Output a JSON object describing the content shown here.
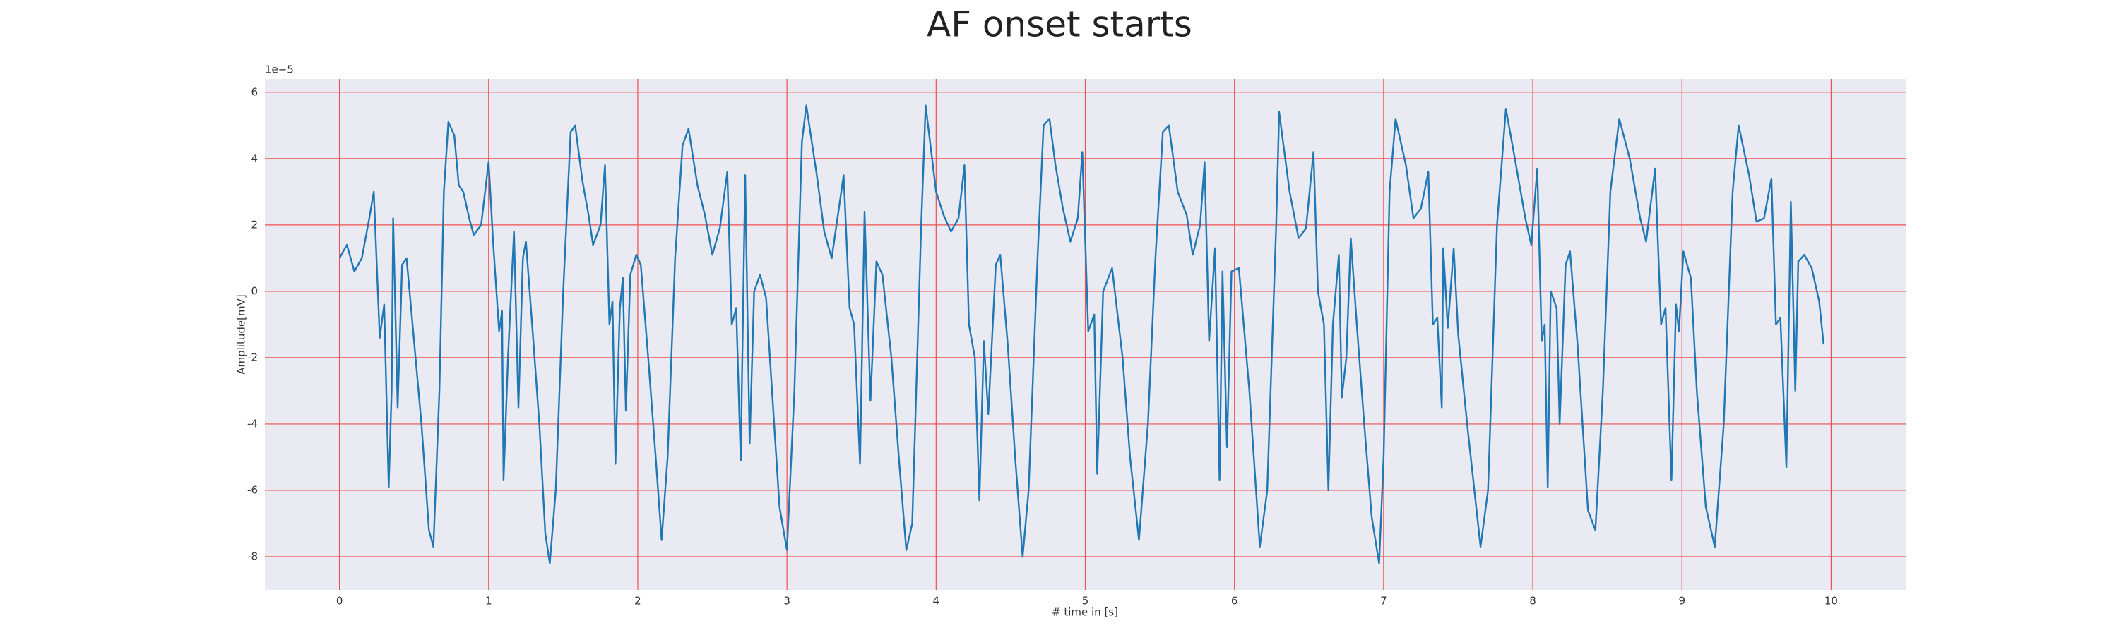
{
  "chart_data": {
    "type": "line",
    "title": "AF onset starts",
    "x_label": "# time in [s]",
    "y_label": "Amplitude[mV]",
    "y_offset_label": "1e−5",
    "x": [
      0,
      0.05,
      0.1,
      0.15,
      0.2,
      0.23,
      0.27,
      0.3,
      0.33,
      0.35,
      0.36,
      0.39,
      0.42,
      0.45,
      0.5,
      0.55,
      0.6,
      0.63,
      0.67,
      0.7,
      0.73,
      0.77,
      0.8,
      0.83,
      0.87,
      0.9,
      0.95,
      1.0,
      1.03,
      1.07,
      1.09,
      1.1,
      1.13,
      1.17,
      1.2,
      1.23,
      1.25,
      1.3,
      1.34,
      1.38,
      1.41,
      1.45,
      1.5,
      1.55,
      1.58,
      1.63,
      1.67,
      1.7,
      1.75,
      1.78,
      1.81,
      1.83,
      1.85,
      1.88,
      1.9,
      1.92,
      1.95,
      1.99,
      2.02,
      2.07,
      2.12,
      2.16,
      2.2,
      2.25,
      2.3,
      2.34,
      2.4,
      2.45,
      2.5,
      2.55,
      2.6,
      2.63,
      2.66,
      2.69,
      2.72,
      2.75,
      2.78,
      2.82,
      2.86,
      2.9,
      2.95,
      3.0,
      3.05,
      3.1,
      3.13,
      3.2,
      3.25,
      3.3,
      3.38,
      3.42,
      3.45,
      3.49,
      3.52,
      3.56,
      3.6,
      3.64,
      3.7,
      3.75,
      3.8,
      3.84,
      3.9,
      3.93,
      4.0,
      4.05,
      4.1,
      4.15,
      4.19,
      4.22,
      4.26,
      4.29,
      4.32,
      4.35,
      4.4,
      4.43,
      4.48,
      4.53,
      4.58,
      4.62,
      4.68,
      4.72,
      4.76,
      4.8,
      4.85,
      4.9,
      4.95,
      4.98,
      5.02,
      5.06,
      5.08,
      5.12,
      5.18,
      5.25,
      5.3,
      5.36,
      5.42,
      5.47,
      5.52,
      5.56,
      5.62,
      5.68,
      5.72,
      5.77,
      5.8,
      5.83,
      5.87,
      5.9,
      5.92,
      5.95,
      5.98,
      6.03,
      6.1,
      6.17,
      6.22,
      6.28,
      6.3,
      6.37,
      6.43,
      6.48,
      6.53,
      6.56,
      6.6,
      6.63,
      6.66,
      6.7,
      6.72,
      6.75,
      6.78,
      6.82,
      6.87,
      6.92,
      6.97,
      7.0,
      7.04,
      7.08,
      7.15,
      7.2,
      7.25,
      7.3,
      7.33,
      7.36,
      7.39,
      7.4,
      7.43,
      7.47,
      7.5,
      7.56,
      7.65,
      7.7,
      7.76,
      7.82,
      7.88,
      7.95,
      7.99,
      8.03,
      8.06,
      8.08,
      8.1,
      8.12,
      8.16,
      8.18,
      8.22,
      8.25,
      8.3,
      8.37,
      8.42,
      8.47,
      8.52,
      8.58,
      8.65,
      8.72,
      8.76,
      8.82,
      8.86,
      8.89,
      8.93,
      8.96,
      8.98,
      9.01,
      9.06,
      9.1,
      9.16,
      9.22,
      9.28,
      9.34,
      9.38,
      9.45,
      9.5,
      9.55,
      9.6,
      9.63,
      9.66,
      9.7,
      9.73,
      9.76,
      9.78,
      9.82,
      9.87,
      9.92,
      9.95
    ],
    "values": [
      1.0,
      1.4,
      0.6,
      1.0,
      2.2,
      3.0,
      -1.4,
      -0.4,
      -5.9,
      -3,
      2.2,
      -3.5,
      0.8,
      1.0,
      -1.5,
      -4,
      -7.2,
      -7.7,
      -3,
      3,
      5.1,
      4.7,
      3.2,
      3,
      2.2,
      1.7,
      2,
      3.9,
      1.5,
      -1.2,
      -0.6,
      -5.7,
      -2,
      1.8,
      -3.5,
      1,
      1.5,
      -1.5,
      -4,
      -7.3,
      -8.2,
      -6,
      0,
      4.8,
      5,
      3.3,
      2.3,
      1.4,
      2,
      3.8,
      -1,
      -0.3,
      -5.2,
      -0.5,
      0.4,
      -3.6,
      0.5,
      1.1,
      0.8,
      -2,
      -5,
      -7.5,
      -5,
      1,
      4.4,
      4.9,
      3.2,
      2.3,
      1.1,
      1.9,
      3.6,
      -1,
      -0.5,
      -5.1,
      3.5,
      -4.6,
      0,
      0.5,
      -0.2,
      -3,
      -6.5,
      -7.8,
      -3,
      4.5,
      5.6,
      3.5,
      1.8,
      1.0,
      3.5,
      -0.5,
      -1,
      -5.2,
      2.4,
      -3.3,
      0.9,
      0.5,
      -2,
      -5,
      -7.8,
      -7,
      2,
      5.6,
      3,
      2.3,
      1.8,
      2.2,
      3.8,
      -1,
      -2,
      -6.3,
      -1.5,
      -3.7,
      0.8,
      1.1,
      -1.6,
      -5,
      -8,
      -6,
      1,
      5,
      5.2,
      3.8,
      2.5,
      1.5,
      2.2,
      4.2,
      -1.2,
      -0.7,
      -5.5,
      0,
      0.7,
      -2,
      -5,
      -7.5,
      -4,
      1,
      4.8,
      5,
      3,
      2.3,
      1.1,
      2,
      3.9,
      -1.5,
      1.3,
      -5.7,
      0.6,
      -4.7,
      0.6,
      0.7,
      -3,
      -7.7,
      -6,
      2,
      5.4,
      3,
      1.6,
      1.9,
      4.2,
      0,
      -1,
      -6,
      -1,
      1.1,
      -3.2,
      -2,
      1.6,
      -1,
      -4,
      -6.8,
      -8.2,
      -5,
      3,
      5.2,
      3.8,
      2.2,
      2.5,
      3.6,
      -1,
      -0.8,
      -3.5,
      1.3,
      -1.1,
      1.3,
      -1.3,
      -4,
      -7.7,
      -6,
      2,
      5.5,
      4,
      2.2,
      1.4,
      3.7,
      -1.5,
      -1,
      -5.9,
      0,
      -0.5,
      -4,
      0.8,
      1.2,
      -1.6,
      -6.6,
      -7.2,
      -3,
      3,
      5.2,
      4,
      2.2,
      1.5,
      3.7,
      -1,
      -0.5,
      -5.7,
      -0.4,
      -1.2,
      1.2,
      0.4,
      -3,
      -6.5,
      -7.7,
      -4,
      3,
      5,
      3.5,
      2.1,
      2.2,
      3.4,
      -1,
      -0.8,
      -5.3,
      2.7,
      -3,
      0.9,
      1.1,
      0.7,
      -0.3,
      -1.6
    ],
    "color": "#1f77b4",
    "grid_color": "#f05050",
    "xlim": [
      -0.5,
      10.5
    ],
    "xticks": [
      0,
      1,
      2,
      3,
      4,
      5,
      6,
      7,
      8,
      9,
      10
    ],
    "ylim": [
      -9,
      6.4
    ],
    "yticks": [
      -8,
      -6,
      -4,
      -2,
      0,
      2,
      4,
      6
    ],
    "grid": true
  }
}
